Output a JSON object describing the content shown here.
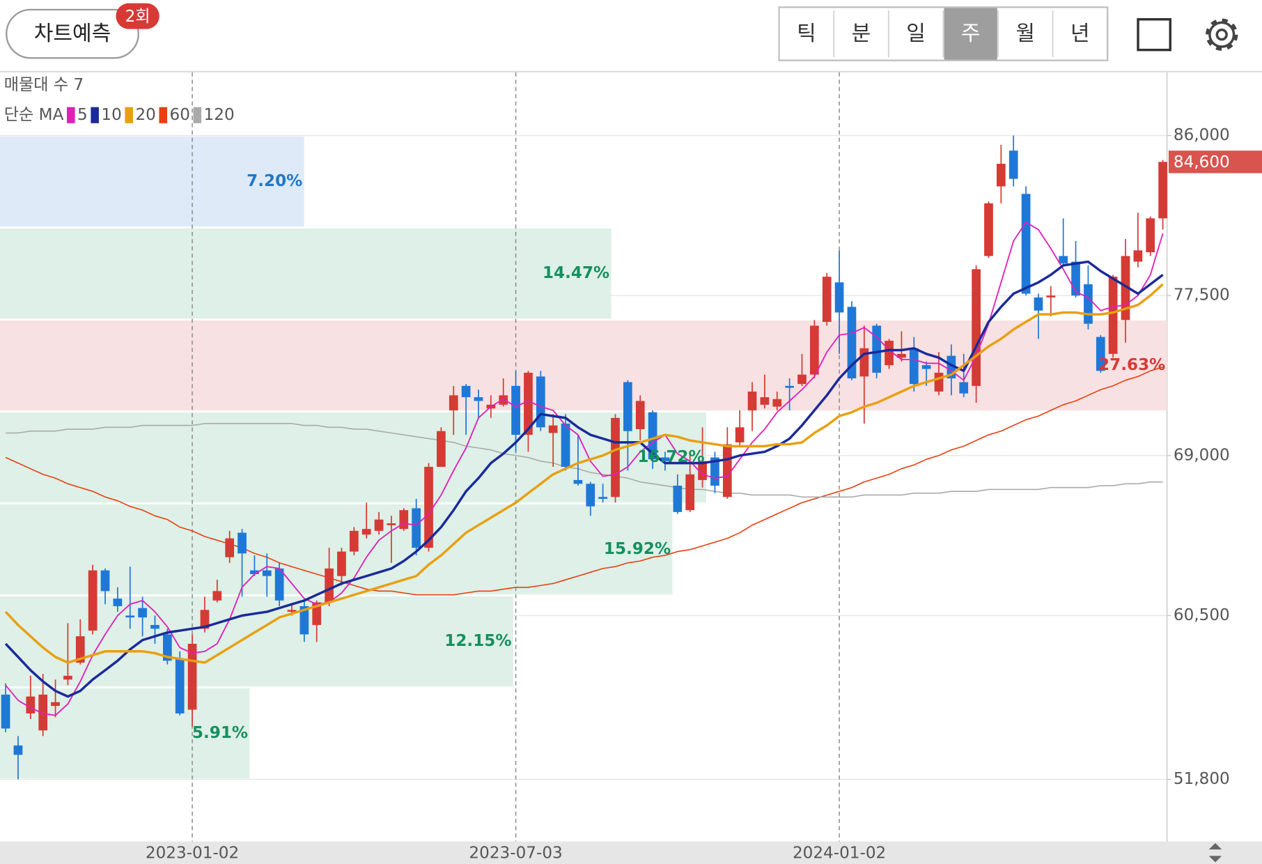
{
  "header": {
    "predict_button": "차트예측",
    "badge": "2회",
    "tabs": [
      "틱",
      "분",
      "일",
      "주",
      "월",
      "년"
    ],
    "selected_tab": 3
  },
  "chart_data": {
    "type": "candlestick",
    "volume_profile_label": "매물대 수 7",
    "ma_label": "단순 MA",
    "up_color": "#d63a35",
    "down_color": "#1f78d8",
    "grid": true,
    "categories": [
      null,
      null,
      null,
      null,
      null,
      null,
      null,
      null,
      null,
      null,
      null,
      null,
      null,
      null,
      null,
      "2023-01-02",
      null,
      null,
      null,
      null,
      null,
      null,
      null,
      null,
      null,
      null,
      null,
      null,
      null,
      null,
      null,
      null,
      null,
      null,
      null,
      null,
      null,
      null,
      null,
      null,
      null,
      "2023-07-03",
      null,
      null,
      null,
      null,
      null,
      null,
      null,
      null,
      null,
      null,
      null,
      null,
      null,
      null,
      null,
      null,
      null,
      null,
      null,
      null,
      null,
      null,
      null,
      null,
      null,
      "2024-01-02",
      null,
      null,
      null,
      null,
      null,
      null,
      null,
      null,
      null,
      null,
      null,
      null,
      null,
      null,
      null,
      null,
      null,
      null,
      null,
      null,
      null,
      null,
      null,
      null,
      null,
      null
    ],
    "ohlc": [
      [
        56300,
        56900,
        54300,
        54500
      ],
      [
        53600,
        54100,
        51800,
        53100
      ],
      [
        55300,
        57300,
        55000,
        56200
      ],
      [
        54400,
        57400,
        54100,
        56300
      ],
      [
        55700,
        57100,
        55100,
        55900
      ],
      [
        57100,
        60100,
        56800,
        57300
      ],
      [
        58000,
        60300,
        57900,
        59400
      ],
      [
        59700,
        63200,
        59500,
        62900
      ],
      [
        62900,
        63000,
        61100,
        61800
      ],
      [
        61400,
        62000,
        60700,
        61000
      ],
      [
        60500,
        63100,
        59800,
        60400
      ],
      [
        60900,
        61500,
        59400,
        60400
      ],
      [
        60000,
        60500,
        59000,
        59800
      ],
      [
        59500,
        59800,
        57900,
        58100
      ],
      [
        58200,
        58600,
        55200,
        55300
      ],
      [
        55500,
        59500,
        54600,
        59000
      ],
      [
        59800,
        61500,
        59600,
        60800
      ],
      [
        61300,
        62400,
        61200,
        61800
      ],
      [
        63600,
        65000,
        63300,
        64600
      ],
      [
        64900,
        65100,
        61500,
        63800
      ],
      [
        62900,
        63700,
        62600,
        62700
      ],
      [
        62900,
        63800,
        61500,
        62600
      ],
      [
        63000,
        63300,
        61000,
        61300
      ],
      [
        60700,
        61100,
        60500,
        60800
      ],
      [
        61000,
        61300,
        59100,
        59500
      ],
      [
        60000,
        61300,
        59100,
        61200
      ],
      [
        61200,
        64100,
        61000,
        63000
      ],
      [
        62600,
        64100,
        62100,
        63900
      ],
      [
        63900,
        65200,
        63700,
        65000
      ],
      [
        64800,
        66500,
        64600,
        65100
      ],
      [
        65000,
        66000,
        64800,
        65600
      ],
      [
        65300,
        65800,
        63300,
        65400
      ],
      [
        65100,
        66200,
        65000,
        66100
      ],
      [
        66200,
        66700,
        63700,
        64100
      ],
      [
        64100,
        68600,
        63900,
        68400
      ],
      [
        68400,
        70500,
        68400,
        70300
      ],
      [
        71400,
        72700,
        70100,
        72200
      ],
      [
        72700,
        72800,
        70100,
        72100
      ],
      [
        72100,
        72500,
        71000,
        71900
      ],
      [
        71500,
        72200,
        71000,
        71700
      ],
      [
        71700,
        73100,
        71600,
        72200
      ],
      [
        72700,
        73500,
        69200,
        70100
      ],
      [
        70100,
        73500,
        69200,
        73400
      ],
      [
        73200,
        73500,
        70300,
        70500
      ],
      [
        70200,
        71200,
        68400,
        70600
      ],
      [
        70700,
        71200,
        68200,
        68400
      ],
      [
        67700,
        70100,
        67400,
        67500
      ],
      [
        67500,
        67600,
        65800,
        66300
      ],
      [
        66800,
        67500,
        66500,
        66700
      ],
      [
        66800,
        71200,
        66500,
        71000
      ],
      [
        72900,
        73000,
        68200,
        70300
      ],
      [
        70400,
        72200,
        69800,
        71900
      ],
      [
        71300,
        71400,
        68300,
        68800
      ],
      [
        68900,
        69200,
        68200,
        68700
      ],
      [
        67400,
        68000,
        65900,
        66000
      ],
      [
        66100,
        69200,
        66000,
        68000
      ],
      [
        67700,
        70500,
        67300,
        68700
      ],
      [
        68900,
        69200,
        67000,
        67400
      ],
      [
        66800,
        70500,
        66700,
        69600
      ],
      [
        69700,
        71400,
        69500,
        70500
      ],
      [
        71400,
        72900,
        70300,
        72400
      ],
      [
        71700,
        73300,
        71500,
        72100
      ],
      [
        71600,
        72400,
        71400,
        72000
      ],
      [
        72700,
        73100,
        71400,
        72600
      ],
      [
        72800,
        74400,
        72700,
        73300
      ],
      [
        73300,
        76200,
        73100,
        75900
      ],
      [
        76100,
        78700,
        75900,
        78500
      ],
      [
        78200,
        79900,
        74400,
        76600
      ],
      [
        76900,
        77200,
        73000,
        73100
      ],
      [
        73200,
        75900,
        70700,
        74700
      ],
      [
        75900,
        76000,
        73100,
        73400
      ],
      [
        73800,
        75200,
        73600,
        75100
      ],
      [
        74200,
        75600,
        74000,
        74400
      ],
      [
        74700,
        75300,
        72400,
        72800
      ],
      [
        73800,
        74000,
        72700,
        73600
      ],
      [
        72400,
        74500,
        72200,
        73400
      ],
      [
        74300,
        74900,
        72200,
        73100
      ],
      [
        72900,
        74400,
        72100,
        72300
      ],
      [
        72700,
        79100,
        71800,
        78900
      ],
      [
        79600,
        82500,
        79500,
        82400
      ],
      [
        83300,
        85500,
        82400,
        84500
      ],
      [
        85200,
        86000,
        83300,
        83700
      ],
      [
        82900,
        83300,
        77500,
        77600
      ],
      [
        77400,
        77600,
        75200,
        76700
      ],
      [
        77400,
        78000,
        76400,
        77500
      ],
      [
        79600,
        81600,
        79100,
        79200
      ],
      [
        79300,
        80400,
        77400,
        77500
      ],
      [
        78100,
        79100,
        75700,
        76000
      ],
      [
        75300,
        75400,
        73400,
        73500
      ],
      [
        74400,
        78600,
        74200,
        78500
      ],
      [
        76200,
        80500,
        75000,
        79600
      ],
      [
        79300,
        81900,
        79000,
        79900
      ],
      [
        79800,
        81700,
        79600,
        81600
      ],
      [
        81600,
        84700,
        81000,
        84600
      ]
    ],
    "ma_series": [
      {
        "name": "5",
        "color": "#e020b8",
        "width": 1.6,
        "values": [
          56800,
          56000,
          55600,
          55300,
          55200,
          55800,
          57000,
          58400,
          59500,
          60500,
          61100,
          61300,
          60700,
          59900,
          58800,
          58500,
          58600,
          59000,
          60300,
          62000,
          62700,
          63100,
          63000,
          62200,
          61400,
          61100,
          61200,
          61700,
          62500,
          63600,
          64500,
          65000,
          65400,
          65300,
          65900,
          66900,
          68200,
          69400,
          71000,
          71600,
          72000,
          71600,
          71900,
          71600,
          71400,
          70600,
          70100,
          68700,
          67900,
          68000,
          68400,
          69200,
          69700,
          70100,
          69100,
          68700,
          68000,
          67800,
          67900,
          68800,
          69700,
          70400,
          71300,
          71900,
          72500,
          73200,
          74500,
          75400,
          75500,
          75800,
          75300,
          74600,
          74100,
          74100,
          73900,
          73900,
          73500,
          73000,
          74300,
          76000,
          78200,
          80400,
          81400,
          81000,
          80000,
          78900,
          77700,
          77400,
          76700,
          76900,
          77000,
          77500,
          78600,
          80800
        ]
      },
      {
        "name": "10",
        "color": "#1a2a9a",
        "width": 3,
        "values": [
          59000,
          58300,
          57600,
          57000,
          56500,
          56200,
          56500,
          57100,
          57600,
          58100,
          58700,
          59200,
          59400,
          59600,
          59700,
          59800,
          59900,
          60100,
          60300,
          60500,
          60600,
          60700,
          60900,
          61100,
          61300,
          61600,
          61900,
          62200,
          62400,
          62600,
          62800,
          63000,
          63400,
          63900,
          64500,
          65200,
          66100,
          67100,
          67800,
          68600,
          69100,
          69700,
          70400,
          71200,
          71100,
          71000,
          70500,
          70100,
          69900,
          69700,
          69700,
          69700,
          69100,
          68600,
          68600,
          68600,
          68600,
          68700,
          68800,
          69000,
          69100,
          69200,
          69500,
          69900,
          70600,
          71400,
          72200,
          73100,
          73800,
          74400,
          74500,
          74600,
          74600,
          74700,
          74400,
          74200,
          73800,
          73500,
          74800,
          76100,
          76900,
          77600,
          77900,
          78200,
          78600,
          79100,
          79200,
          79300,
          78800,
          78400,
          78000,
          77600,
          78100,
          78600
        ]
      },
      {
        "name": "20",
        "color": "#e8a010",
        "width": 3,
        "values": [
          60700,
          60000,
          59400,
          58800,
          58300,
          58000,
          58200,
          58400,
          58600,
          58600,
          58600,
          58600,
          58500,
          58300,
          58200,
          58100,
          58000,
          58400,
          58800,
          59200,
          59600,
          60000,
          60400,
          60600,
          60800,
          61000,
          61200,
          61400,
          61600,
          61800,
          62000,
          62200,
          62400,
          62600,
          63200,
          63700,
          64300,
          64900,
          65300,
          65700,
          66100,
          66500,
          67000,
          67500,
          68000,
          68300,
          68600,
          68800,
          69000,
          69300,
          69500,
          69700,
          69900,
          70100,
          70000,
          69800,
          69700,
          69600,
          69500,
          69500,
          69500,
          69500,
          69600,
          69600,
          69700,
          70200,
          70600,
          71100,
          71300,
          71600,
          71800,
          72100,
          72400,
          72700,
          72900,
          73100,
          73300,
          73800,
          74300,
          74800,
          75200,
          75700,
          76100,
          76500,
          76500,
          76600,
          76600,
          76500,
          76500,
          76600,
          76800,
          77000,
          77500,
          78100
        ]
      },
      {
        "name": "60",
        "color": "#e84010",
        "width": 1.4,
        "values": [
          68900,
          68600,
          68300,
          68000,
          67800,
          67500,
          67300,
          67100,
          66800,
          66600,
          66300,
          66100,
          65800,
          65600,
          65200,
          65000,
          64700,
          64500,
          64300,
          64100,
          63800,
          63600,
          63300,
          63100,
          62900,
          62700,
          62500,
          62300,
          62100,
          61900,
          61800,
          61800,
          61700,
          61600,
          61600,
          61600,
          61600,
          61700,
          61800,
          61800,
          61900,
          62000,
          62000,
          62100,
          62200,
          62400,
          62600,
          62800,
          63000,
          63100,
          63300,
          63400,
          63600,
          63700,
          63900,
          64000,
          64200,
          64400,
          64600,
          64900,
          65300,
          65600,
          65900,
          66200,
          66500,
          66700,
          66900,
          67100,
          67300,
          67600,
          67800,
          68000,
          68300,
          68500,
          68800,
          69000,
          69300,
          69500,
          69800,
          70100,
          70300,
          70600,
          70900,
          71100,
          71400,
          71700,
          71900,
          72200,
          72500,
          72700,
          73000,
          73200,
          73500,
          73700
        ]
      },
      {
        "name": "120",
        "color": "#aaaaaa",
        "width": 1.4,
        "values": [
          70200,
          70200,
          70300,
          70300,
          70300,
          70400,
          70400,
          70400,
          70500,
          70500,
          70500,
          70600,
          70600,
          70600,
          70600,
          70600,
          70700,
          70700,
          70700,
          70700,
          70700,
          70700,
          70700,
          70700,
          70600,
          70600,
          70500,
          70500,
          70400,
          70400,
          70300,
          70200,
          70100,
          70000,
          69900,
          69800,
          69700,
          69500,
          69400,
          69300,
          69100,
          69000,
          68900,
          68700,
          68600,
          68400,
          68300,
          68100,
          68000,
          67900,
          67800,
          67600,
          67500,
          67400,
          67300,
          67200,
          67200,
          67100,
          67000,
          67000,
          66900,
          66900,
          66900,
          66900,
          66800,
          66800,
          66800,
          66800,
          66800,
          66900,
          66900,
          66900,
          66900,
          67000,
          67000,
          67000,
          67100,
          67100,
          67100,
          67200,
          67200,
          67200,
          67200,
          67200,
          67300,
          67300,
          67300,
          67300,
          67400,
          67400,
          67500,
          67500,
          67600,
          67600
        ]
      }
    ],
    "volume_profile": {
      "bins": [
        51800,
        56686,
        61571,
        66457,
        71343,
        76229,
        81114,
        86000
      ],
      "values": [
        5.91,
        12.15,
        15.92,
        16.72,
        27.63,
        14.47,
        7.2
      ],
      "value_labels": [
        "5.91%",
        "12.15%",
        "15.92%",
        "16.72%",
        "27.63%",
        "14.47%",
        "7.20%"
      ],
      "colors": [
        "#dcefe6",
        "#dcefe6",
        "#dcefe6",
        "#dcefe6",
        "#f8dfe0",
        "#dcefe6",
        "#dde9f8"
      ],
      "label_colors": [
        "#16905e",
        "#16905e",
        "#16905e",
        "#16905e",
        "#d63a35",
        "#16905e",
        "#1f78c8"
      ]
    },
    "ylim": [
      48500,
      89350
    ],
    "yticks": [
      {
        "value": 51800,
        "label": "51,800"
      },
      {
        "value": 60500,
        "label": "60,500"
      },
      {
        "value": 69000,
        "label": "69,000"
      },
      {
        "value": 77500,
        "label": "77,500"
      },
      {
        "value": 86000,
        "label": "86,000"
      }
    ],
    "current_price": {
      "value": 84600,
      "label": "84,600"
    }
  }
}
